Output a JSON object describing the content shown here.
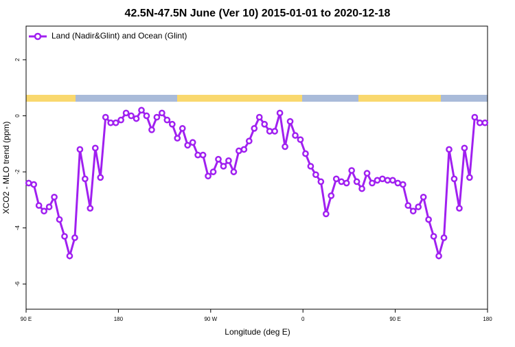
{
  "chart_data": {
    "type": "line",
    "title": "42.5N-47.5N June (Ver 10)   2015-01-01 to 2020-12-18",
    "x_label": "Longitude (deg E)",
    "y_label": "XCO2 - MLO trend (ppm)",
    "x": [
      92.5,
      97.5,
      102.5,
      107.5,
      112.5,
      117.5,
      122.5,
      127.5,
      132.5,
      137.5,
      142.5,
      147.5,
      152.5,
      157.5,
      162.5,
      167.5,
      172.5,
      177.5,
      182.5,
      187.5,
      192.5,
      197.5,
      202.5,
      207.5,
      212.5,
      217.5,
      222.5,
      227.5,
      232.5,
      237.5,
      242.5,
      247.5,
      252.5,
      257.5,
      262.5,
      267.5,
      272.5,
      277.5,
      282.5,
      287.5,
      292.5,
      297.5,
      302.5,
      307.5,
      312.5,
      317.5,
      322.5,
      327.5,
      332.5,
      337.5,
      342.5,
      347.5,
      352.5,
      357.5,
      362.5,
      367.5,
      372.5,
      377.5,
      382.5,
      387.5,
      392.5,
      397.5,
      402.5,
      407.5,
      412.5,
      417.5,
      422.5,
      427.5,
      432.5,
      437.5,
      442.5,
      447.5,
      452.5,
      457.5,
      462.5,
      467.5,
      472.5,
      477.5,
      482.5,
      487.5,
      492.5,
      497.5,
      502.5,
      507.5,
      512.5,
      517.5,
      522.5,
      527.5,
      532.5,
      537.5
    ],
    "series": [
      {
        "name": "Land (Nadir&Glint) and Ocean (Glint)",
        "color": "#a020f0",
        "values": [
          -2.4,
          -2.45,
          -3.2,
          -3.4,
          -3.25,
          -2.9,
          -3.7,
          -4.3,
          -5.0,
          -4.35,
          -1.2,
          -2.25,
          -3.3,
          -1.15,
          -2.2,
          -0.05,
          -0.25,
          -0.25,
          -0.15,
          0.1,
          0.0,
          -0.1,
          0.2,
          0.0,
          -0.5,
          -0.05,
          0.1,
          -0.15,
          -0.3,
          -0.8,
          -0.45,
          -1.05,
          -0.95,
          -1.4,
          -1.4,
          -2.15,
          -2.0,
          -1.55,
          -1.8,
          -1.6,
          -2.0,
          -1.25,
          -1.2,
          -0.9,
          -0.45,
          -0.05,
          -0.3,
          -0.55,
          -0.55,
          0.1,
          -1.1,
          -0.2,
          -0.7,
          -0.85,
          -1.35,
          -1.8,
          -2.1,
          -2.35,
          -3.5,
          -2.85,
          -2.25,
          -2.35,
          -2.4,
          -1.95,
          -2.35,
          -2.6,
          -2.05,
          -2.4,
          -2.3,
          -2.25,
          -2.3,
          -2.3,
          -2.4,
          -2.45,
          -3.2,
          -3.4,
          -3.25,
          -2.9,
          -3.7,
          -4.3,
          -5.0,
          -4.35,
          -1.2,
          -2.25,
          -3.3,
          -1.15,
          -2.2,
          -0.05,
          -0.25,
          -0.25
        ]
      }
    ],
    "xlim": [
      90,
      540
    ],
    "xticks": [
      {
        "value": 90,
        "label": "90 E"
      },
      {
        "value": 180,
        "label": "180"
      },
      {
        "value": 270,
        "label": "90 W"
      },
      {
        "value": 360,
        "label": "0"
      },
      {
        "value": 450,
        "label": "90 E"
      },
      {
        "value": 540,
        "label": "180"
      }
    ],
    "ylim": [
      -6.9,
      3.2
    ],
    "yticks": [
      -6,
      -4,
      -2,
      0,
      2
    ],
    "legend": "top-left"
  }
}
